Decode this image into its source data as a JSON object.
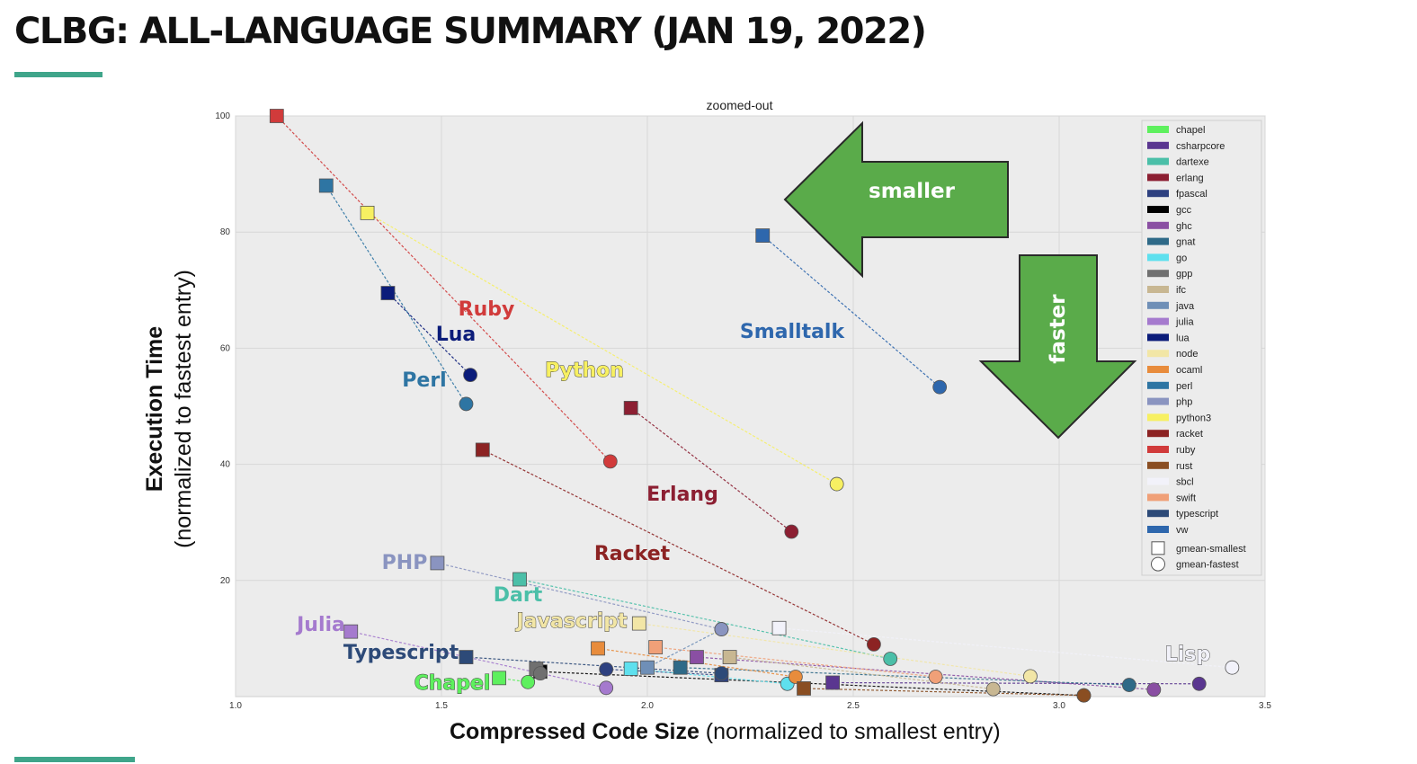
{
  "slide": {
    "title": "CLBG: ALL-LANGUAGE SUMMARY (JAN 19, 2022)",
    "accent_color": "#3fa58a"
  },
  "chart_data": {
    "type": "scatter",
    "title": "zoomed-out",
    "xlabel_bold": "Compressed Code Size",
    "xlabel_rest": " (normalized to smallest entry)",
    "ylabel_bold": "Execution Time",
    "ylabel_rest": "(normalized to fastest entry)",
    "xlim": [
      1.0,
      3.5
    ],
    "ylim": [
      0,
      100
    ],
    "x_ticks": [
      "1.0",
      "1.5",
      "2.0",
      "2.5",
      "3.0",
      "3.5"
    ],
    "y_ticks": [
      "20",
      "40",
      "60",
      "80",
      "100"
    ],
    "grid": true,
    "legend_position": "top-right",
    "legend_markers": [
      {
        "label": "gmean-smallest",
        "shape": "square"
      },
      {
        "label": "gmean-fastest",
        "shape": "circle"
      }
    ],
    "series": [
      {
        "name": "chapel",
        "color": "#5ef05e",
        "smallest": [
          1.64,
          3.2
        ],
        "fastest": [
          1.71,
          2.5
        ],
        "label": "Chapel"
      },
      {
        "name": "csharpcore",
        "color": "#5a3690",
        "smallest": [
          2.45,
          2.4
        ],
        "fastest": [
          3.34,
          2.2
        ]
      },
      {
        "name": "dartexe",
        "color": "#4bbfa8",
        "smallest": [
          1.69,
          20.2
        ],
        "fastest": [
          2.59,
          6.5
        ],
        "label": "Dart"
      },
      {
        "name": "erlang",
        "color": "#8c1f32",
        "smallest": [
          1.96,
          49.7
        ],
        "fastest": [
          2.35,
          28.4
        ],
        "label": "Erlang"
      },
      {
        "name": "fpascal",
        "color": "#2e4180",
        "smallest": [
          2.18,
          3.7
        ],
        "fastest": [
          1.9,
          4.7
        ]
      },
      {
        "name": "gcc",
        "color": "#000000",
        "smallest": [
          1.74,
          4.3
        ],
        "fastest": [
          3.06,
          0.2
        ]
      },
      {
        "name": "ghc",
        "color": "#8a4fa3",
        "smallest": [
          2.12,
          6.8
        ],
        "fastest": [
          3.23,
          1.2
        ]
      },
      {
        "name": "gnat",
        "color": "#2f6a88",
        "smallest": [
          2.08,
          5.0
        ],
        "fastest": [
          3.17,
          2.0
        ]
      },
      {
        "name": "go",
        "color": "#5ee0ee",
        "smallest": [
          1.96,
          4.8
        ],
        "fastest": [
          2.34,
          2.2
        ]
      },
      {
        "name": "gpp",
        "color": "#707070",
        "smallest": [
          1.73,
          4.8
        ],
        "fastest": [
          1.74,
          4.0
        ]
      },
      {
        "name": "ifc",
        "color": "#c8b792",
        "smallest": [
          2.2,
          6.8
        ],
        "fastest": [
          2.84,
          1.3
        ]
      },
      {
        "name": "java",
        "color": "#6f8fb7",
        "smallest": [
          2.0,
          5.0
        ],
        "fastest": [
          2.18,
          11.6
        ]
      },
      {
        "name": "julia",
        "color": "#a57ace",
        "smallest": [
          1.28,
          11.2
        ],
        "fastest": [
          1.9,
          1.5
        ],
        "label": "Julia"
      },
      {
        "name": "lua",
        "color": "#0b1c7a",
        "smallest": [
          1.37,
          69.5
        ],
        "fastest": [
          1.57,
          55.4
        ],
        "label": "Lua"
      },
      {
        "name": "node",
        "color": "#f2e6a6",
        "smallest": [
          1.98,
          12.6
        ],
        "fastest": [
          2.93,
          3.5
        ],
        "label": "Javascript"
      },
      {
        "name": "ocaml",
        "color": "#e88c3c",
        "smallest": [
          1.88,
          8.3
        ],
        "fastest": [
          2.36,
          3.4
        ]
      },
      {
        "name": "perl",
        "color": "#2e75a3",
        "smallest": [
          1.22,
          88.0
        ],
        "fastest": [
          1.56,
          50.4
        ],
        "label": "Perl"
      },
      {
        "name": "php",
        "color": "#8a94c0",
        "smallest": [
          1.49,
          23.0
        ],
        "fastest": [
          2.18,
          11.6
        ],
        "label": "PHP"
      },
      {
        "name": "python3",
        "color": "#f7f062",
        "smallest": [
          1.32,
          83.3
        ],
        "fastest": [
          2.46,
          36.6
        ],
        "label": "Python"
      },
      {
        "name": "racket",
        "color": "#8c2323",
        "smallest": [
          1.6,
          42.5
        ],
        "fastest": [
          2.55,
          9.0
        ],
        "label": "Racket"
      },
      {
        "name": "ruby",
        "color": "#d13b3b",
        "smallest": [
          1.1,
          100.0
        ],
        "fastest": [
          1.91,
          40.5
        ],
        "label": "Ruby"
      },
      {
        "name": "rust",
        "color": "#8a4e22",
        "smallest": [
          2.38,
          1.4
        ],
        "fastest": [
          3.06,
          0.2
        ]
      },
      {
        "name": "sbcl",
        "color": "#f2f2fa",
        "smallest": [
          2.32,
          11.8
        ],
        "fastest": [
          3.42,
          5.0
        ],
        "label": "Lisp"
      },
      {
        "name": "swift",
        "color": "#f0a078",
        "smallest": [
          2.02,
          8.5
        ],
        "fastest": [
          2.7,
          3.4
        ]
      },
      {
        "name": "typescript",
        "color": "#2d4a78",
        "smallest": [
          1.56,
          6.8
        ],
        "fastest": [
          2.18,
          4.0
        ],
        "label": "Typescript"
      },
      {
        "name": "vw",
        "color": "#2e67ad",
        "smallest": [
          2.28,
          79.4
        ],
        "fastest": [
          2.71,
          53.3
        ],
        "label": "Smalltalk"
      }
    ],
    "annotations": [
      {
        "text": "smaller",
        "kind": "arrow-left",
        "color": "#5aab4a"
      },
      {
        "text": "faster",
        "kind": "arrow-down",
        "color": "#5aab4a"
      }
    ]
  }
}
